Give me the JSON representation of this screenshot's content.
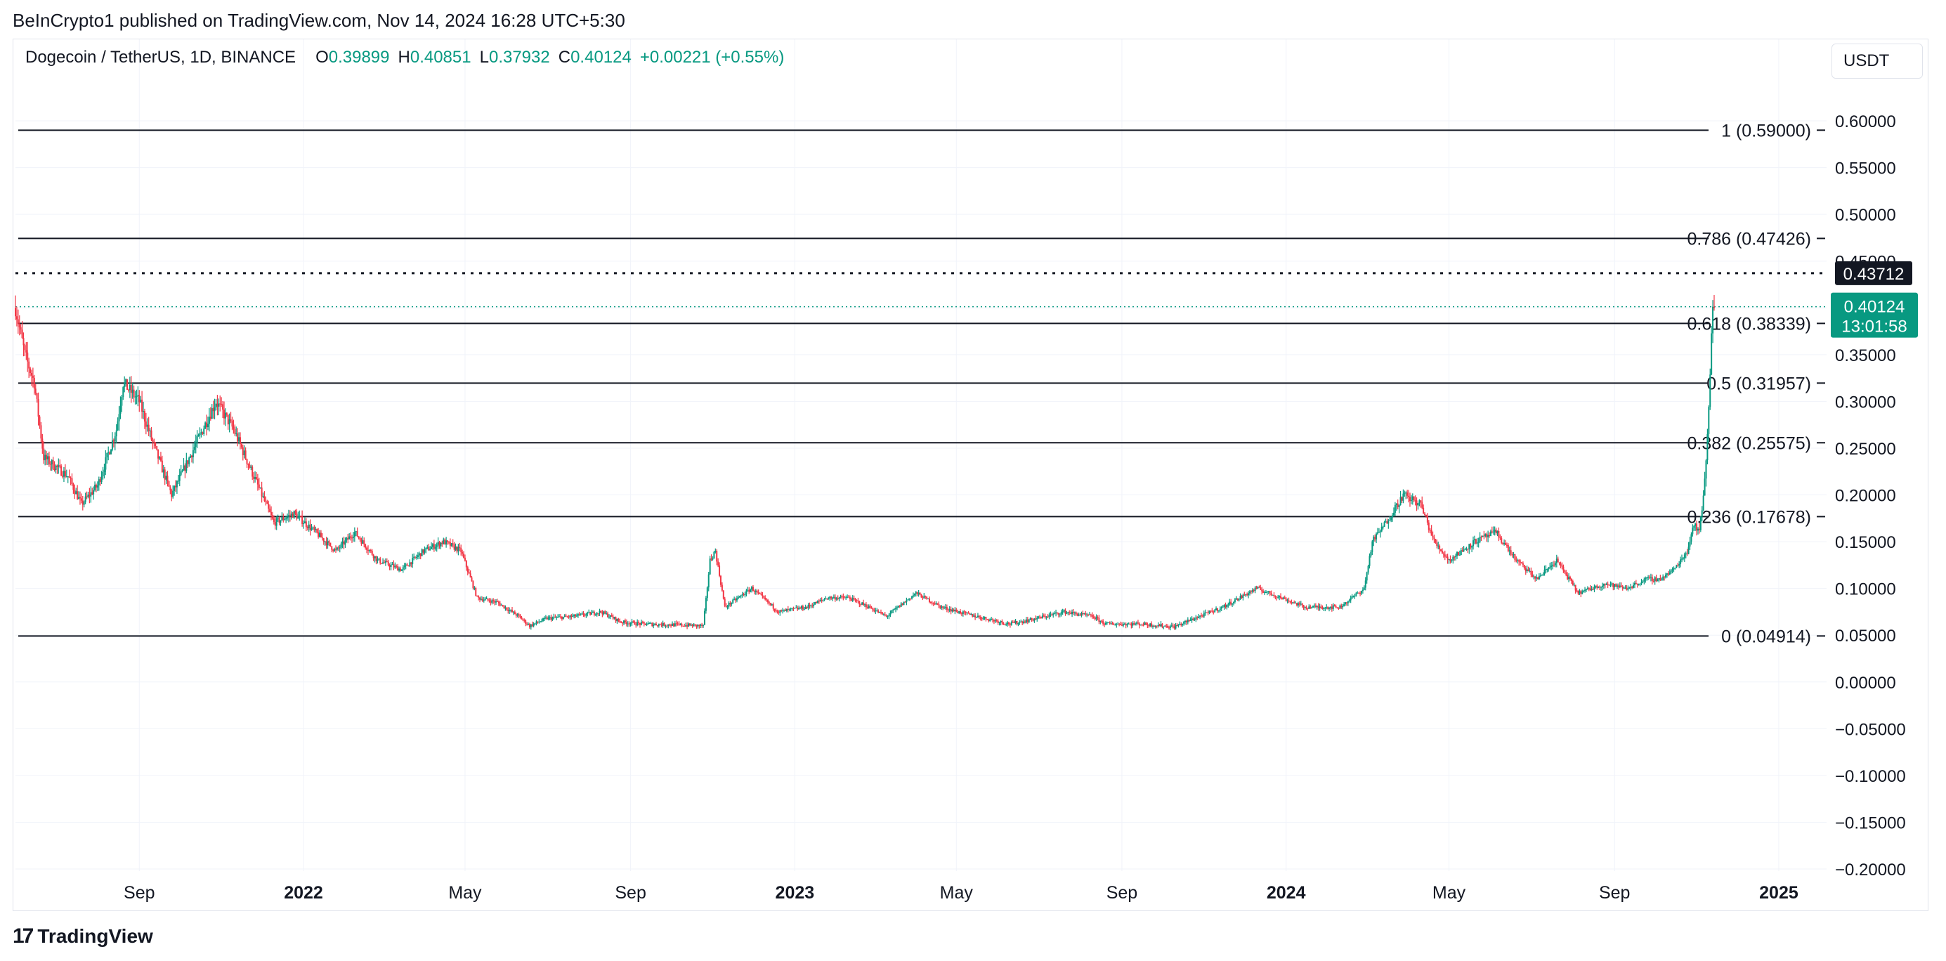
{
  "caption": "BeInCrypto1 published on TradingView.com, Nov 14, 2024 16:28 UTC+5:30",
  "legend": {
    "symbol": "Dogecoin / TetherUS, 1D, BINANCE",
    "o_label": "O",
    "o_value": "0.39899",
    "h_label": "H",
    "h_value": "0.40851",
    "l_label": "L",
    "l_value": "0.37932",
    "c_label": "C",
    "c_value": "0.40124",
    "change": "+0.00221 (+0.55%)"
  },
  "currency": "USDT",
  "footer_logo": {
    "mark": "17",
    "text": "TradingView"
  },
  "colors": {
    "up": "#089981",
    "down": "#f23645",
    "grid": "#f0f3fa",
    "line": "#131722",
    "axis_text": "#131722"
  },
  "chart_data": {
    "type": "candlestick",
    "ylim": [
      -0.2,
      0.6
    ],
    "yticks": [
      "0.60000",
      "0.55000",
      "0.50000",
      "0.45000",
      "0.40000",
      "0.35000",
      "0.30000",
      "0.25000",
      "0.20000",
      "0.15000",
      "0.10000",
      "0.05000",
      "0.00000",
      "−0.05000",
      "−0.10000",
      "−0.15000",
      "−0.20000"
    ],
    "x_ticks": [
      {
        "label": "Sep",
        "bold": false,
        "date": "2021-09"
      },
      {
        "label": "2022",
        "bold": true,
        "date": "2022-01"
      },
      {
        "label": "May",
        "bold": false,
        "date": "2022-05"
      },
      {
        "label": "Sep",
        "bold": false,
        "date": "2022-09"
      },
      {
        "label": "2023",
        "bold": true,
        "date": "2023-01"
      },
      {
        "label": "May",
        "bold": false,
        "date": "2023-05"
      },
      {
        "label": "Sep",
        "bold": false,
        "date": "2023-09"
      },
      {
        "label": "2024",
        "bold": true,
        "date": "2024-01"
      },
      {
        "label": "May",
        "bold": false,
        "date": "2024-05"
      },
      {
        "label": "Sep",
        "bold": false,
        "date": "2024-09"
      },
      {
        "label": "2025",
        "bold": true,
        "date": "2025-01"
      }
    ],
    "fib_levels": [
      {
        "label": "1 (0.59000)",
        "value": 0.59
      },
      {
        "label": "0.786 (0.47426)",
        "value": 0.47426
      },
      {
        "label": "0.618 (0.38339)",
        "value": 0.38339
      },
      {
        "label": "0.5 (0.31957)",
        "value": 0.31957
      },
      {
        "label": "0.382 (0.25575)",
        "value": 0.25575
      },
      {
        "label": "0.236 (0.17678)",
        "value": 0.17678
      },
      {
        "label": "0 (0.04914)",
        "value": 0.04914
      }
    ],
    "dotted_level": {
      "value": 0.43712,
      "label": "0.43712"
    },
    "last_price": {
      "value": 0.40124,
      "label": "0.40124",
      "countdown": "13:01:58"
    },
    "price_path": [
      [
        "2021-06-01",
        0.4
      ],
      [
        "2021-06-08",
        0.35
      ],
      [
        "2021-06-15",
        0.32
      ],
      [
        "2021-06-22",
        0.24
      ],
      [
        "2021-07-01",
        0.23
      ],
      [
        "2021-07-10",
        0.22
      ],
      [
        "2021-07-20",
        0.19
      ],
      [
        "2021-08-01",
        0.21
      ],
      [
        "2021-08-15",
        0.27
      ],
      [
        "2021-08-20",
        0.32
      ],
      [
        "2021-09-01",
        0.3
      ],
      [
        "2021-09-10",
        0.26
      ],
      [
        "2021-09-25",
        0.2
      ],
      [
        "2021-10-05",
        0.23
      ],
      [
        "2021-10-28",
        0.3
      ],
      [
        "2021-11-10",
        0.27
      ],
      [
        "2021-11-25",
        0.22
      ],
      [
        "2021-12-10",
        0.17
      ],
      [
        "2021-12-25",
        0.18
      ],
      [
        "2022-01-10",
        0.16
      ],
      [
        "2022-01-25",
        0.14
      ],
      [
        "2022-02-08",
        0.16
      ],
      [
        "2022-02-25",
        0.13
      ],
      [
        "2022-03-15",
        0.12
      ],
      [
        "2022-03-31",
        0.14
      ],
      [
        "2022-04-15",
        0.15
      ],
      [
        "2022-04-28",
        0.14
      ],
      [
        "2022-05-10",
        0.09
      ],
      [
        "2022-05-25",
        0.085
      ],
      [
        "2022-06-10",
        0.07
      ],
      [
        "2022-06-18",
        0.06
      ],
      [
        "2022-07-01",
        0.068
      ],
      [
        "2022-07-20",
        0.07
      ],
      [
        "2022-08-10",
        0.075
      ],
      [
        "2022-08-25",
        0.064
      ],
      [
        "2022-09-10",
        0.062
      ],
      [
        "2022-10-05",
        0.061
      ],
      [
        "2022-10-25",
        0.06
      ],
      [
        "2022-10-30",
        0.13
      ],
      [
        "2022-11-03",
        0.14
      ],
      [
        "2022-11-10",
        0.08
      ],
      [
        "2022-11-30",
        0.1
      ],
      [
        "2022-12-20",
        0.075
      ],
      [
        "2023-01-10",
        0.08
      ],
      [
        "2023-01-25",
        0.09
      ],
      [
        "2023-02-10",
        0.09
      ],
      [
        "2023-02-25",
        0.08
      ],
      [
        "2023-03-10",
        0.07
      ],
      [
        "2023-04-01",
        0.095
      ],
      [
        "2023-04-20",
        0.08
      ],
      [
        "2023-05-10",
        0.072
      ],
      [
        "2023-06-10",
        0.062
      ],
      [
        "2023-06-30",
        0.068
      ],
      [
        "2023-07-20",
        0.075
      ],
      [
        "2023-08-10",
        0.07
      ],
      [
        "2023-08-20",
        0.062
      ],
      [
        "2023-09-15",
        0.062
      ],
      [
        "2023-10-10",
        0.059
      ],
      [
        "2023-10-25",
        0.068
      ],
      [
        "2023-11-15",
        0.08
      ],
      [
        "2023-12-10",
        0.1
      ],
      [
        "2023-12-25",
        0.092
      ],
      [
        "2024-01-15",
        0.08
      ],
      [
        "2024-02-10",
        0.08
      ],
      [
        "2024-02-28",
        0.1
      ],
      [
        "2024-03-05",
        0.15
      ],
      [
        "2024-03-15",
        0.17
      ],
      [
        "2024-03-28",
        0.2
      ],
      [
        "2024-04-10",
        0.19
      ],
      [
        "2024-04-20",
        0.15
      ],
      [
        "2024-05-01",
        0.13
      ],
      [
        "2024-05-20",
        0.15
      ],
      [
        "2024-06-05",
        0.16
      ],
      [
        "2024-06-20",
        0.13
      ],
      [
        "2024-07-05",
        0.11
      ],
      [
        "2024-07-20",
        0.13
      ],
      [
        "2024-08-05",
        0.095
      ],
      [
        "2024-08-25",
        0.105
      ],
      [
        "2024-09-10",
        0.1
      ],
      [
        "2024-09-25",
        0.11
      ],
      [
        "2024-10-05",
        0.11
      ],
      [
        "2024-10-15",
        0.12
      ],
      [
        "2024-10-25",
        0.14
      ],
      [
        "2024-10-30",
        0.17
      ],
      [
        "2024-11-03",
        0.16
      ],
      [
        "2024-11-06",
        0.2
      ],
      [
        "2024-11-09",
        0.26
      ],
      [
        "2024-11-11",
        0.33
      ],
      [
        "2024-11-12",
        0.38
      ],
      [
        "2024-11-13",
        0.41
      ],
      [
        "2024-11-14",
        0.40124
      ]
    ]
  }
}
